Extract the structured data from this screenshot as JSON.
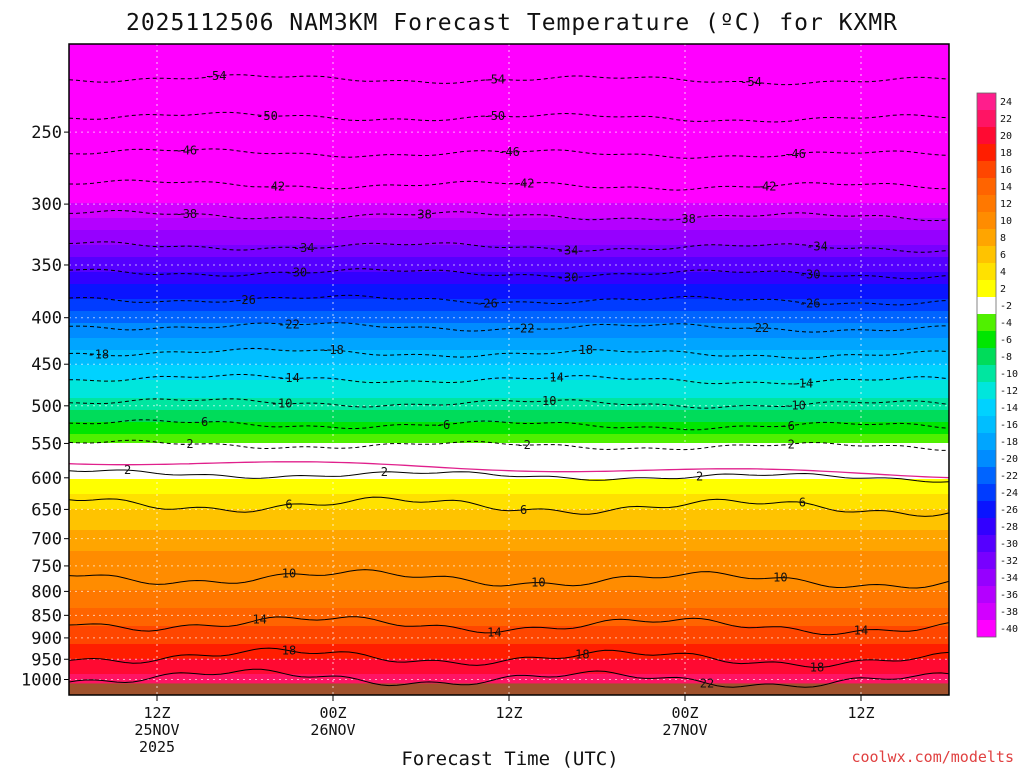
{
  "chart_data": {
    "type": "heatmap",
    "title": "2025112506 NAM3KM Forecast Temperature (ºC) for KXMR",
    "xlabel": "Forecast Time (UTC)",
    "ylabel": "",
    "credit": "coolwx.com/modelts",
    "y_axis": {
      "scale": "log-pressure",
      "range_hpa": [
        1040,
        200
      ],
      "ticks": [
        "250",
        "300",
        "350",
        "400",
        "450",
        "500",
        "550",
        "600",
        "650",
        "700",
        "750",
        "800",
        "850",
        "900",
        "950",
        "1000"
      ]
    },
    "x_axis": {
      "range_hours_from_init": [
        0,
        60
      ],
      "ticks": [
        {
          "hour": 6,
          "line1": "12Z",
          "line2": "25NOV",
          "line3": "2025"
        },
        {
          "hour": 18,
          "line1": "00Z",
          "line2": "26NOV",
          "line3": ""
        },
        {
          "hour": 30,
          "line1": "12Z",
          "line2": "",
          "line3": ""
        },
        {
          "hour": 42,
          "line1": "00Z",
          "line2": "27NOV",
          "line3": ""
        },
        {
          "hour": 54,
          "line1": "12Z",
          "line2": "",
          "line3": ""
        }
      ]
    },
    "temperature_profile": [
      {
        "p": 1000,
        "t": 22
      },
      {
        "p": 950,
        "t": 19
      },
      {
        "p": 900,
        "t": 16
      },
      {
        "p": 850,
        "t": 14
      },
      {
        "p": 800,
        "t": 11
      },
      {
        "p": 750,
        "t": 10
      },
      {
        "p": 700,
        "t": 8
      },
      {
        "p": 650,
        "t": 5
      },
      {
        "p": 600,
        "t": 1
      },
      {
        "p": 550,
        "t": -3
      },
      {
        "p": 500,
        "t": -10
      },
      {
        "p": 450,
        "t": -15
      },
      {
        "p": 400,
        "t": -22
      },
      {
        "p": 350,
        "t": -30
      },
      {
        "p": 300,
        "t": -39
      },
      {
        "p": 250,
        "t": -49
      },
      {
        "p": 200,
        "t": -58
      }
    ],
    "contours": [
      {
        "value": -54,
        "p": 218,
        "labels": [
          {
            "hour": 10,
            "text": "-54"
          },
          {
            "hour": 29,
            "text": "-54"
          },
          {
            "hour": 46.5,
            "text": "-54"
          }
        ]
      },
      {
        "value": -50,
        "p": 240,
        "labels": [
          {
            "hour": 13.5,
            "text": "-50"
          },
          {
            "hour": 29,
            "text": "-50"
          }
        ]
      },
      {
        "value": -46,
        "p": 263,
        "labels": [
          {
            "hour": 8,
            "text": "-46"
          },
          {
            "hour": 30,
            "text": "-46"
          },
          {
            "hour": 49.5,
            "text": "-46"
          }
        ]
      },
      {
        "value": -42,
        "p": 285,
        "labels": [
          {
            "hour": 14,
            "text": "-42"
          },
          {
            "hour": 31,
            "text": "-42"
          },
          {
            "hour": 47.5,
            "text": "-42"
          }
        ]
      },
      {
        "value": -38,
        "p": 308,
        "labels": [
          {
            "hour": 8,
            "text": "-38"
          },
          {
            "hour": 24,
            "text": "-38"
          },
          {
            "hour": 42,
            "text": "-38"
          }
        ]
      },
      {
        "value": -34,
        "p": 333,
        "labels": [
          {
            "hour": 16,
            "text": "-34"
          },
          {
            "hour": 34,
            "text": "-34"
          },
          {
            "hour": 51,
            "text": "-34"
          }
        ]
      },
      {
        "value": -30,
        "p": 356,
        "labels": [
          {
            "hour": 15.5,
            "text": "-30"
          },
          {
            "hour": 34,
            "text": "-30"
          },
          {
            "hour": 50.5,
            "text": "-30"
          }
        ]
      },
      {
        "value": -26,
        "p": 381,
        "labels": [
          {
            "hour": 12,
            "text": "-26"
          },
          {
            "hour": 28.5,
            "text": "-26"
          },
          {
            "hour": 50.5,
            "text": "-26"
          }
        ]
      },
      {
        "value": -22,
        "p": 408,
        "labels": [
          {
            "hour": 15,
            "text": "-22"
          },
          {
            "hour": 31,
            "text": "-22"
          },
          {
            "hour": 47,
            "text": "-22"
          }
        ]
      },
      {
        "value": -18,
        "p": 436,
        "labels": [
          {
            "hour": 2,
            "text": "-18"
          },
          {
            "hour": 18,
            "text": "-18"
          },
          {
            "hour": 35,
            "text": "-18"
          }
        ]
      },
      {
        "value": -14,
        "p": 466,
        "labels": [
          {
            "hour": 15,
            "text": "-14"
          },
          {
            "hour": 33,
            "text": "-14"
          },
          {
            "hour": 50,
            "text": "-14"
          }
        ]
      },
      {
        "value": -10,
        "p": 495,
        "labels": [
          {
            "hour": 14.5,
            "text": "-10"
          },
          {
            "hour": 32.5,
            "text": "-10"
          },
          {
            "hour": 49.5,
            "text": "-10"
          }
        ]
      },
      {
        "value": -6,
        "p": 523,
        "labels": [
          {
            "hour": 9,
            "text": "-6"
          },
          {
            "hour": 25.5,
            "text": "-6"
          },
          {
            "hour": 49,
            "text": "-6"
          }
        ]
      },
      {
        "value": -2,
        "p": 551,
        "labels": [
          {
            "hour": 8,
            "text": "-2"
          },
          {
            "hour": 31,
            "text": "-2"
          },
          {
            "hour": 49,
            "text": "-2"
          }
        ]
      },
      {
        "value": 2,
        "p": 593,
        "labels": [
          {
            "hour": 4,
            "text": "2"
          },
          {
            "hour": 21.5,
            "text": "2"
          },
          {
            "hour": 43,
            "text": "2"
          }
        ]
      },
      {
        "value": 6,
        "p": 640,
        "labels": [
          {
            "hour": 15,
            "text": "6"
          },
          {
            "hour": 31,
            "text": "6"
          },
          {
            "hour": 50,
            "text": "6"
          }
        ]
      },
      {
        "value": 10,
        "p": 770,
        "labels": [
          {
            "hour": 15,
            "text": "10"
          },
          {
            "hour": 32,
            "text": "10"
          },
          {
            "hour": 48.5,
            "text": "10"
          }
        ]
      },
      {
        "value": 14,
        "p": 865,
        "labels": [
          {
            "hour": 13,
            "text": "14"
          },
          {
            "hour": 29,
            "text": "14"
          },
          {
            "hour": 54,
            "text": "14"
          }
        ]
      },
      {
        "value": 18,
        "p": 940,
        "labels": [
          {
            "hour": 15,
            "text": "18"
          },
          {
            "hour": 35,
            "text": "18"
          },
          {
            "hour": 51,
            "text": "18"
          }
        ]
      },
      {
        "value": 22,
        "p": 992,
        "labels": [
          {
            "hour": 43.5,
            "text": "22"
          }
        ]
      }
    ],
    "colorbar": {
      "labels": [
        "24",
        "22",
        "20",
        "18",
        "16",
        "14",
        "12",
        "10",
        "8",
        "6",
        "4",
        "2",
        "-2",
        "-4",
        "-6",
        "-8",
        "-10",
        "-12",
        "-14",
        "-16",
        "-18",
        "-20",
        "-22",
        "-24",
        "-26",
        "-28",
        "-30",
        "-32",
        "-34",
        "-36",
        "-38",
        "-40"
      ],
      "colors": [
        "#ff1e8c",
        "#ff1464",
        "#ff0a32",
        "#ff1e00",
        "#ff4600",
        "#ff6400",
        "#ff7800",
        "#ff8c00",
        "#ffa500",
        "#ffc300",
        "#ffe100",
        "#ffff00",
        "#ffffff",
        "#50f000",
        "#00e600",
        "#00dc5a",
        "#00e6a0",
        "#00e6dc",
        "#00d2ff",
        "#00beff",
        "#00a5ff",
        "#008cff",
        "#0064ff",
        "#003cff",
        "#0a14ff",
        "#3200ff",
        "#5500ff",
        "#7800ff",
        "#9600ff",
        "#b400ff",
        "#d200ff",
        "#ff00ff"
      ]
    },
    "ground_color": "#a0522d"
  }
}
